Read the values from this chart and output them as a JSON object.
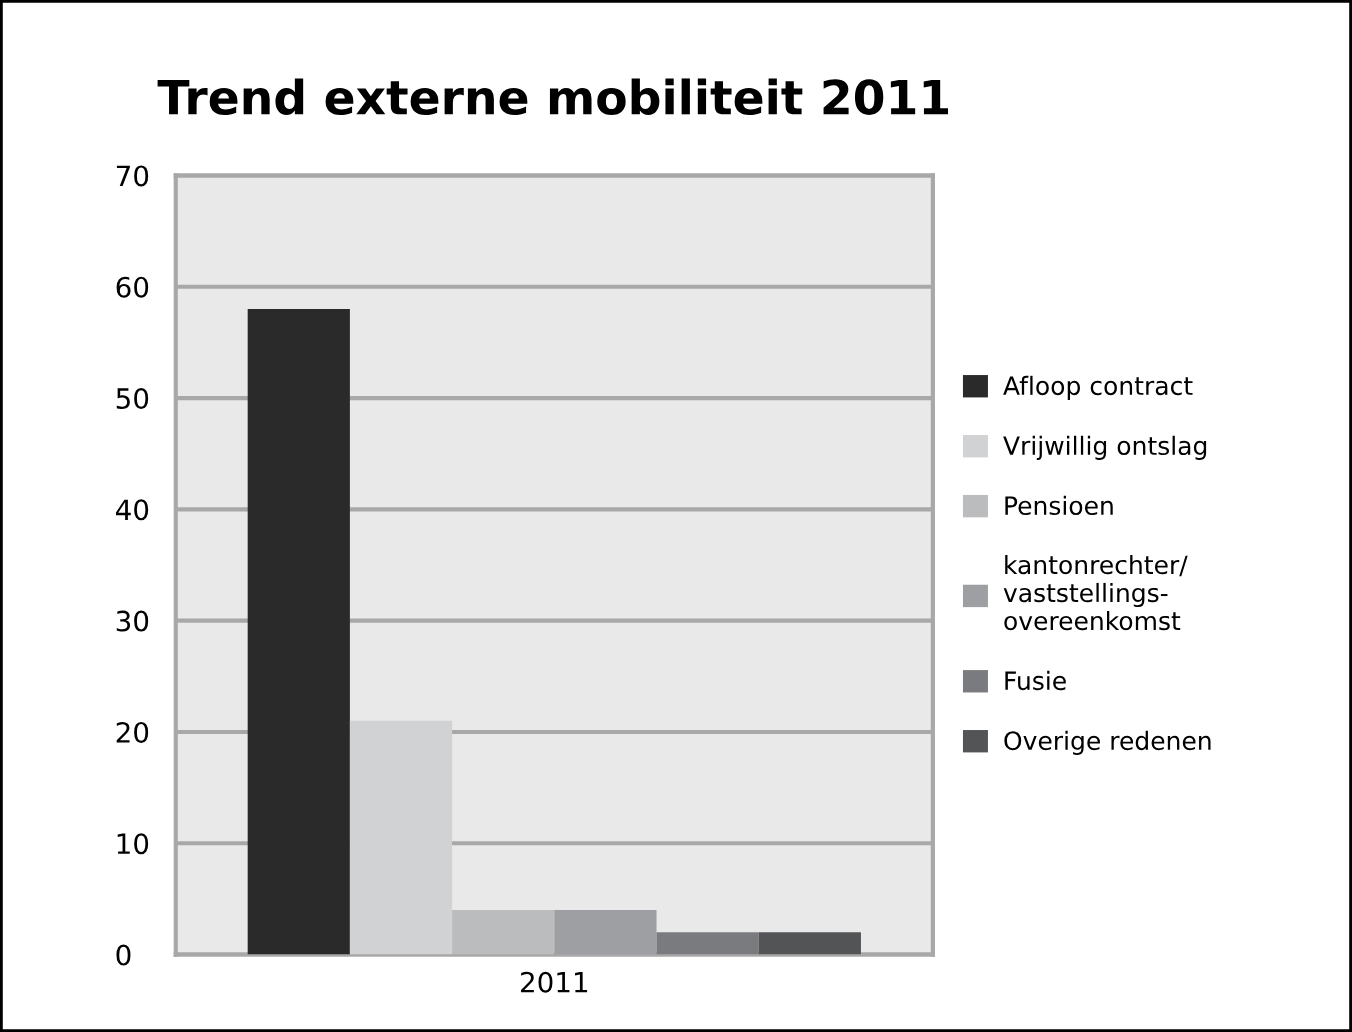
{
  "chart_data": {
    "type": "bar",
    "title": "Trend externe mobiliteit 2011",
    "categories": [
      "2011"
    ],
    "series": [
      {
        "name": "Afloop contract",
        "color": "#2a2a2a",
        "values": [
          58
        ]
      },
      {
        "name": "Vrijwillig ontslag",
        "color": "#d1d2d4",
        "values": [
          21
        ]
      },
      {
        "name": "Pensioen",
        "color": "#bbbcbe",
        "values": [
          4
        ]
      },
      {
        "name": "kantonrechter/\nvaststellings-\novereenkomst",
        "color": "#9e9fa2",
        "values": [
          4
        ]
      },
      {
        "name": "Fusie",
        "color": "#7a7b7e",
        "values": [
          2
        ]
      },
      {
        "name": "Overige redenen",
        "color": "#535456",
        "values": [
          2
        ]
      }
    ],
    "ylim": [
      0,
      70
    ],
    "yticks": [
      0,
      10,
      20,
      30,
      40,
      50,
      60,
      70
    ],
    "grid": "y",
    "legend": "right"
  }
}
